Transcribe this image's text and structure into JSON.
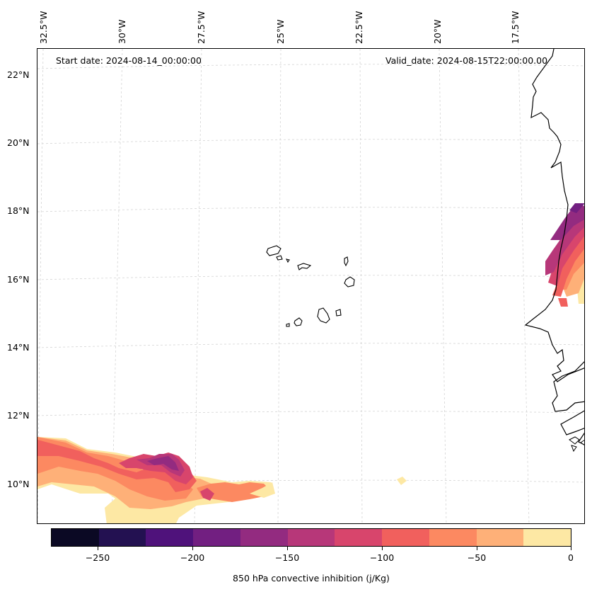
{
  "header": {
    "start_date": "Start date: 2024-08-14_00:00:00",
    "valid_date": "Valid_date: 2024-08-15T22:00:00.00"
  },
  "map": {
    "lon_labels": [
      "32.5°W",
      "30°W",
      "27.5°W",
      "25°W",
      "22.5°W",
      "20°W",
      "17.5°W"
    ],
    "lat_labels": [
      "22°N",
      "20°N",
      "18°N",
      "16°N",
      "14°N",
      "12°N",
      "10°N"
    ],
    "coastline_color": "#000000",
    "gridline_color": "#cccccc"
  },
  "colorbar": {
    "label": "850 hPa convective inhibition (j/Kg)",
    "tick_labels": [
      "−250",
      "−200",
      "−150",
      "−100",
      "−50",
      "0"
    ],
    "levels": [
      -275,
      -250,
      -225,
      -200,
      -175,
      -150,
      -125,
      -100,
      -75,
      -50,
      -25,
      0
    ],
    "colors": [
      "#0b0924",
      "#231151",
      "#4f127b",
      "#721f81",
      "#932b80",
      "#b73779",
      "#d8456c",
      "#f1605d",
      "#fc8961",
      "#feb078",
      "#fde8a4"
    ]
  }
}
